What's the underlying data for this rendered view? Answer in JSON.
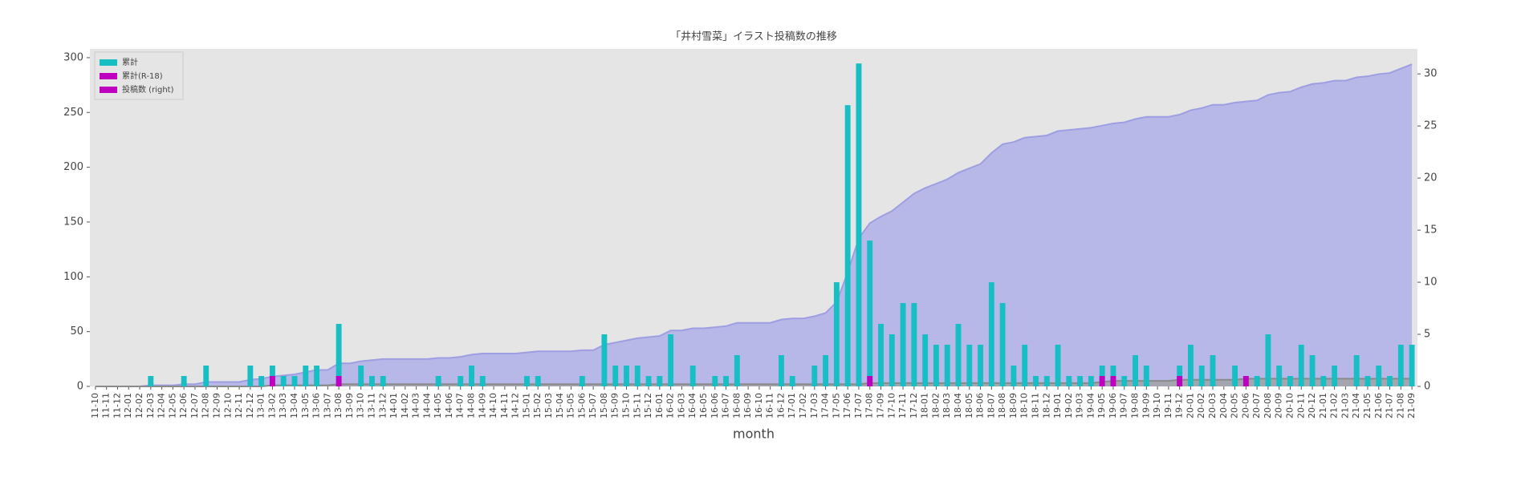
{
  "chart_data": {
    "type": "bar",
    "title": "「井村雪菜」イラスト投稿数の推移",
    "x_label": "month",
    "categories": [
      "11-10",
      "11-11",
      "11-12",
      "12-01",
      "12-02",
      "12-03",
      "12-04",
      "12-05",
      "12-06",
      "12-07",
      "12-08",
      "12-09",
      "12-10",
      "12-11",
      "12-12",
      "13-01",
      "13-02",
      "13-03",
      "13-04",
      "13-05",
      "13-06",
      "13-07",
      "13-08",
      "13-09",
      "13-10",
      "13-11",
      "13-12",
      "14-01",
      "14-02",
      "14-03",
      "14-04",
      "14-05",
      "14-06",
      "14-07",
      "14-08",
      "14-09",
      "14-10",
      "14-11",
      "14-12",
      "15-01",
      "15-02",
      "15-03",
      "15-04",
      "15-05",
      "15-06",
      "15-07",
      "15-08",
      "15-09",
      "15-10",
      "15-11",
      "15-12",
      "16-01",
      "16-02",
      "16-03",
      "16-04",
      "16-05",
      "16-06",
      "16-07",
      "16-08",
      "16-09",
      "16-10",
      "16-11",
      "16-12",
      "17-01",
      "17-02",
      "17-03",
      "17-04",
      "17-05",
      "17-06",
      "17-07",
      "17-08",
      "17-09",
      "17-10",
      "17-11",
      "17-12",
      "18-01",
      "18-02",
      "18-03",
      "18-04",
      "18-05",
      "18-06",
      "18-07",
      "18-08",
      "18-09",
      "18-10",
      "18-11",
      "18-12",
      "19-01",
      "19-02",
      "19-03",
      "19-04",
      "19-05",
      "19-06",
      "19-07",
      "19-08",
      "19-09",
      "19-10",
      "19-11",
      "19-12",
      "20-01",
      "20-02",
      "20-03",
      "20-04",
      "20-05",
      "20-06",
      "20-07",
      "20-08",
      "20-09",
      "20-10",
      "20-11",
      "20-12",
      "21-01",
      "21-02",
      "21-03",
      "21-04",
      "21-05",
      "21-06",
      "21-07",
      "21-08",
      "21-09"
    ],
    "series": [
      {
        "name": "累計",
        "kind": "area",
        "color": "#17bfc4",
        "fill": "#b3b3e8",
        "axis": "y",
        "values": [
          0,
          0,
          0,
          0,
          0,
          1,
          1,
          1,
          2,
          2,
          4,
          4,
          4,
          4,
          6,
          7,
          9,
          10,
          11,
          13,
          15,
          15,
          21,
          21,
          23,
          24,
          25,
          25,
          25,
          25,
          25,
          26,
          26,
          27,
          29,
          30,
          30,
          30,
          30,
          31,
          32,
          32,
          32,
          32,
          33,
          33,
          38,
          40,
          42,
          44,
          45,
          46,
          51,
          51,
          53,
          53,
          54,
          55,
          58,
          58,
          58,
          58,
          61,
          62,
          62,
          64,
          67,
          77,
          104,
          135,
          149,
          155,
          160,
          168,
          176,
          181,
          185,
          189,
          195,
          199,
          203,
          213,
          221,
          223,
          227,
          228,
          229,
          233,
          234,
          235,
          236,
          238,
          240,
          241,
          244,
          246,
          246,
          246,
          248,
          252,
          254,
          257,
          257,
          259,
          260,
          261,
          266,
          268,
          269,
          273,
          276,
          277,
          279,
          279,
          282,
          283,
          285,
          286,
          290,
          294
        ]
      },
      {
        "name": "累計(R-18)",
        "kind": "area",
        "color": "#c000c0",
        "fill": "#a0a0a0",
        "axis": "y",
        "values": [
          0,
          0,
          0,
          0,
          0,
          0,
          0,
          0,
          0,
          0,
          0,
          0,
          0,
          0,
          0,
          0,
          1,
          1,
          1,
          1,
          1,
          1,
          2,
          2,
          2,
          2,
          2,
          2,
          2,
          2,
          2,
          2,
          2,
          2,
          2,
          2,
          2,
          2,
          2,
          2,
          2,
          2,
          2,
          2,
          2,
          2,
          2,
          2,
          2,
          2,
          2,
          2,
          2,
          2,
          2,
          2,
          2,
          2,
          2,
          2,
          2,
          2,
          2,
          2,
          2,
          2,
          2,
          2,
          2,
          2,
          3,
          3,
          3,
          3,
          3,
          3,
          3,
          3,
          3,
          3,
          3,
          3,
          3,
          3,
          3,
          3,
          3,
          3,
          3,
          3,
          3,
          4,
          5,
          5,
          5,
          5,
          5,
          5,
          6,
          6,
          6,
          6,
          6,
          6,
          7,
          7,
          7,
          7,
          7,
          7,
          7,
          7,
          7,
          7,
          7,
          7,
          7,
          7,
          7,
          7
        ]
      },
      {
        "name": "投稿数 (right)",
        "kind": "bar",
        "color": "#c000c0",
        "fill": "#17bfc4",
        "axis": "y2",
        "values": [
          0,
          0,
          0,
          0,
          0,
          1,
          0,
          0,
          1,
          0,
          2,
          0,
          0,
          0,
          2,
          1,
          2,
          1,
          1,
          2,
          2,
          0,
          6,
          0,
          2,
          1,
          1,
          0,
          0,
          0,
          0,
          1,
          0,
          1,
          2,
          1,
          0,
          0,
          0,
          1,
          1,
          0,
          0,
          0,
          1,
          0,
          5,
          2,
          2,
          2,
          1,
          1,
          5,
          0,
          2,
          0,
          1,
          1,
          3,
          0,
          0,
          0,
          3,
          1,
          0,
          2,
          3,
          10,
          27,
          31,
          14,
          6,
          5,
          8,
          8,
          5,
          4,
          4,
          6,
          4,
          4,
          10,
          8,
          2,
          4,
          1,
          1,
          4,
          1,
          1,
          1,
          2,
          2,
          1,
          3,
          2,
          0,
          0,
          2,
          4,
          2,
          3,
          0,
          2,
          1,
          1,
          5,
          2,
          1,
          4,
          3,
          1,
          2,
          0,
          3,
          1,
          2,
          1,
          4,
          4
        ]
      },
      {
        "kind": "bar",
        "color": "#c000c0",
        "fill": "#c000c0",
        "axis": "y2",
        "values": [
          0,
          0,
          0,
          0,
          0,
          0,
          0,
          0,
          0,
          0,
          0,
          0,
          0,
          0,
          0,
          0,
          1,
          0,
          0,
          0,
          0,
          0,
          1,
          0,
          0,
          0,
          0,
          0,
          0,
          0,
          0,
          0,
          0,
          0,
          0,
          0,
          0,
          0,
          0,
          0,
          0,
          0,
          0,
          0,
          0,
          0,
          0,
          0,
          0,
          0,
          0,
          0,
          0,
          0,
          0,
          0,
          0,
          0,
          0,
          0,
          0,
          0,
          0,
          0,
          0,
          0,
          0,
          0,
          0,
          0,
          1,
          0,
          0,
          0,
          0,
          0,
          0,
          0,
          0,
          0,
          0,
          0,
          0,
          0,
          0,
          0,
          0,
          0,
          0,
          0,
          0,
          1,
          1,
          0,
          0,
          0,
          0,
          0,
          1,
          0,
          0,
          0,
          0,
          0,
          1,
          0,
          0,
          0,
          0,
          0,
          0,
          0,
          0,
          0,
          0,
          0,
          0,
          0,
          0,
          0
        ]
      }
    ],
    "ylim": [
      0,
      308
    ],
    "yticks": [
      0,
      50,
      100,
      150,
      200,
      250,
      300
    ],
    "y2lim": [
      0,
      32.4
    ],
    "y2ticks": [
      0,
      5,
      10,
      15,
      20,
      25,
      30
    ],
    "legend": "upper left",
    "background": "#e5e5e5"
  }
}
